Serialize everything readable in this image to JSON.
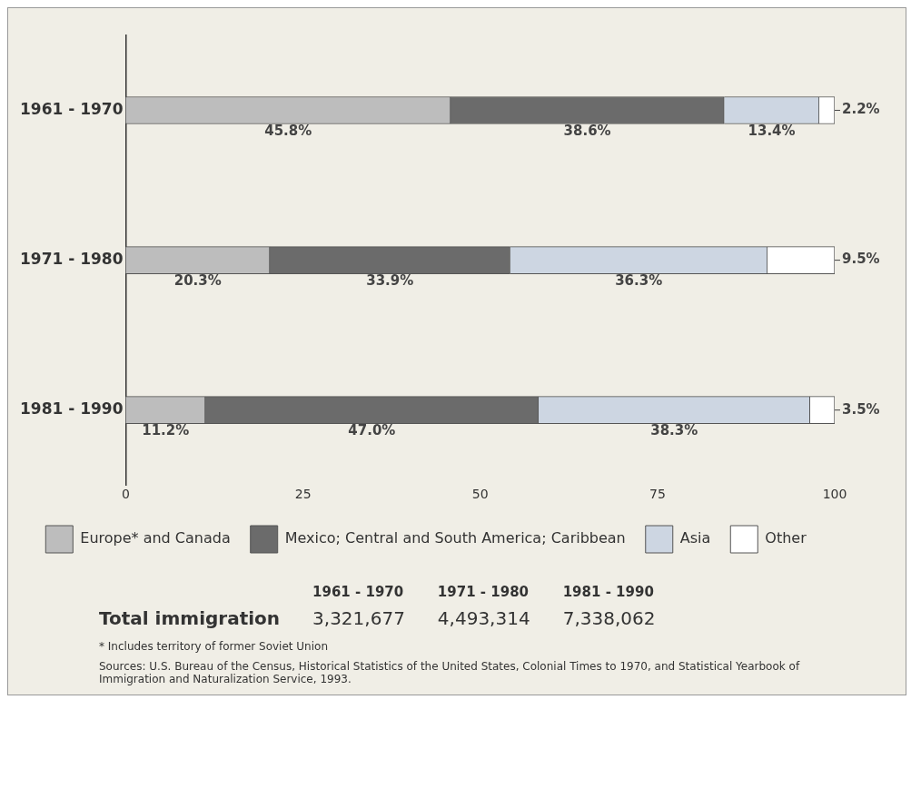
{
  "chart_data": {
    "type": "bar",
    "orientation": "horizontal",
    "stacked": true,
    "categories": [
      "1961 - 1970",
      "1971 - 1980",
      "1981 - 1990"
    ],
    "series": [
      {
        "name": "Europe* and Canada",
        "color": "#bdbdbd",
        "values": [
          45.8,
          20.3,
          11.2
        ],
        "value_labels": [
          "45.8%",
          "20.3%",
          "11.2%"
        ]
      },
      {
        "name": "Mexico; Central and South America; Caribbean",
        "color": "#6b6b6b",
        "values": [
          38.6,
          33.9,
          47.0
        ],
        "value_labels": [
          "38.6%",
          "33.9%",
          "47.0%"
        ]
      },
      {
        "name": "Asia",
        "color": "#cdd6e2",
        "values": [
          13.4,
          36.3,
          38.3
        ],
        "value_labels": [
          "13.4%",
          "36.3%",
          "38.3%"
        ]
      },
      {
        "name": "Other",
        "color": "#ffffff",
        "values": [
          2.2,
          9.5,
          3.5
        ],
        "value_labels": [
          "2.2%",
          "9.5%",
          "3.5%"
        ]
      }
    ],
    "xlim": [
      0,
      100
    ],
    "xticks": [
      0,
      25,
      50,
      75,
      100
    ],
    "grid": false,
    "legend": "bottom",
    "annotations": [
      "1961 - 1970",
      "1971 - 1980",
      "1981 - 1990",
      "Total immigration",
      "3,321,677",
      "4,493,314",
      "7,338,062",
      "* Includes territory of former Soviet Union",
      "Sources: U.S. Bureau of the Census, Historical Statistics of the United States, Colonial Times to 1970, and Statistical Yearbook of Immigration and Naturalization Service, 1993."
    ]
  }
}
